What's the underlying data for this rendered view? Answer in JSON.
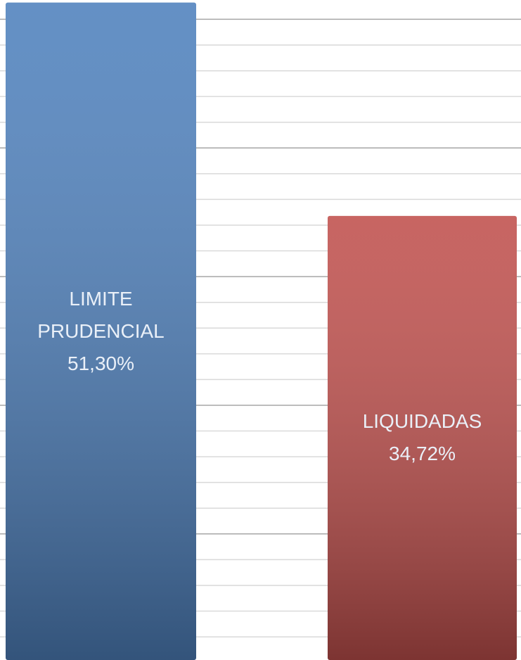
{
  "chart_data": {
    "type": "bar",
    "categories": [
      "LIMITE PRUDENCIAL",
      "LIQUIDADAS"
    ],
    "values": [
      51.3,
      34.72
    ],
    "value_labels": [
      "51,30%",
      "34,72%"
    ],
    "colors": [
      "#4f81bd",
      "#c0504d"
    ],
    "ylim": [
      0.2,
      51.5
    ],
    "yticks": [
      10,
      20,
      30,
      40,
      50
    ],
    "minor_yticks": [
      2,
      4,
      6,
      8,
      12,
      14,
      16,
      18,
      22,
      24,
      26,
      28,
      32,
      34,
      36,
      38,
      42,
      44,
      46,
      48
    ],
    "grid": true
  }
}
